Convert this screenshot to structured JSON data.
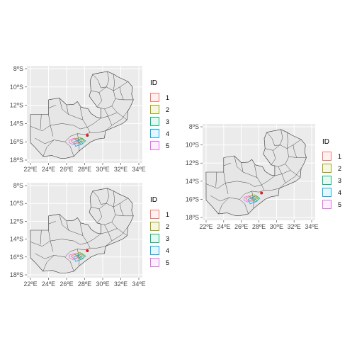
{
  "maps": [
    {
      "id": "map-top-left",
      "x_ticks": [
        "22ºE",
        "24ºE",
        "26ºE",
        "28ºE",
        "30ºE",
        "32ºE",
        "34ºE"
      ],
      "y_ticks": [
        "8ºS",
        "10ºS",
        "12ºS",
        "14ºS",
        "16ºS",
        "18ºS"
      ],
      "legend": {
        "title": "ID",
        "items": [
          "1",
          "2",
          "3",
          "4",
          "5"
        ]
      }
    },
    {
      "id": "map-bottom-left",
      "x_ticks": [
        "22ºE",
        "24ºE",
        "26ºE",
        "28ºE",
        "30ºE",
        "32ºE",
        "34ºE"
      ],
      "y_ticks": [
        "8ºS",
        "10ºS",
        "12ºS",
        "14ºS",
        "16ºS",
        "18ºS"
      ],
      "legend": {
        "title": "ID",
        "items": [
          "1",
          "2",
          "3",
          "4",
          "5"
        ]
      }
    },
    {
      "id": "map-right",
      "x_ticks": [
        "22ºE",
        "24ºE",
        "26ºE",
        "28ºE",
        "30ºE",
        "32ºE",
        "34ºE"
      ],
      "y_ticks": [
        "8ºS",
        "10ºS",
        "12ºS",
        "14ºS",
        "16ºS",
        "18ºS"
      ],
      "legend": {
        "title": "ID",
        "items": [
          "1",
          "2",
          "3",
          "4",
          "5"
        ]
      }
    }
  ],
  "legend_colors": [
    "#F8766D",
    "#A3A500",
    "#00BF7D",
    "#00B0F6",
    "#E76BF3"
  ],
  "panel_background": "#EBEBEB",
  "gridline_color": "#FFFFFF",
  "country_fill": "#E6E6E6",
  "border_color": "#333333",
  "marker_color": "#E41A1C"
}
